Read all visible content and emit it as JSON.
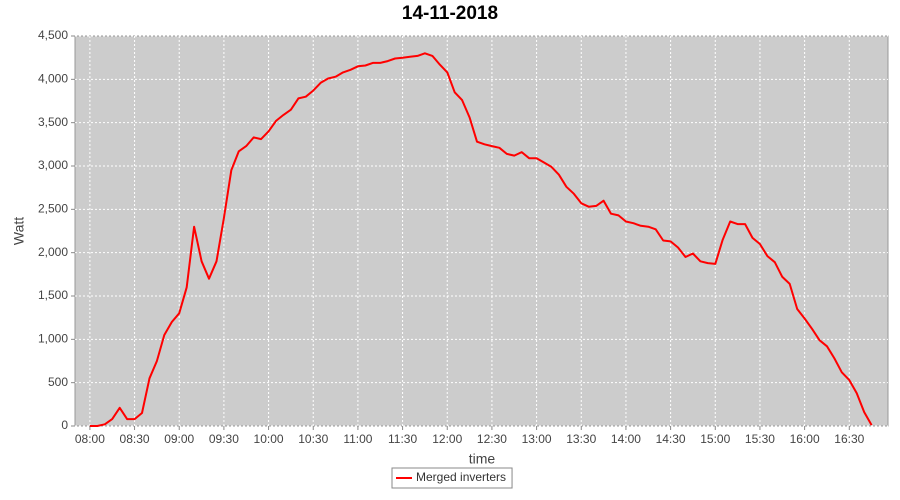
{
  "chart_data": {
    "type": "line",
    "title": "14-11-2018",
    "x_label": "time",
    "y_label": "Watt",
    "x": [
      "08:00",
      "08:05",
      "08:10",
      "08:15",
      "08:20",
      "08:25",
      "08:30",
      "08:35",
      "08:40",
      "08:45",
      "08:50",
      "08:55",
      "09:00",
      "09:05",
      "09:10",
      "09:15",
      "09:20",
      "09:25",
      "09:30",
      "09:35",
      "09:40",
      "09:45",
      "09:50",
      "09:55",
      "10:00",
      "10:05",
      "10:10",
      "10:15",
      "10:20",
      "10:25",
      "10:30",
      "10:35",
      "10:40",
      "10:45",
      "10:50",
      "10:55",
      "11:00",
      "11:05",
      "11:10",
      "11:15",
      "11:20",
      "11:25",
      "11:30",
      "11:35",
      "11:40",
      "11:45",
      "11:50",
      "11:55",
      "12:00",
      "12:05",
      "12:10",
      "12:15",
      "12:20",
      "12:25",
      "12:30",
      "12:35",
      "12:40",
      "12:45",
      "12:50",
      "12:55",
      "13:00",
      "13:05",
      "13:10",
      "13:15",
      "13:20",
      "13:25",
      "13:30",
      "13:35",
      "13:40",
      "13:45",
      "13:50",
      "13:55",
      "14:00",
      "14:05",
      "14:10",
      "14:15",
      "14:20",
      "14:25",
      "14:30",
      "14:35",
      "14:40",
      "14:45",
      "14:50",
      "14:55",
      "15:00",
      "15:05",
      "15:10",
      "15:15",
      "15:20",
      "15:25",
      "15:30",
      "15:35",
      "15:40",
      "15:45",
      "15:50",
      "15:55",
      "16:00",
      "16:05",
      "16:10",
      "16:15",
      "16:20",
      "16:25",
      "16:30",
      "16:35",
      "16:40",
      "16:45"
    ],
    "series": [
      {
        "name": "Merged inverters",
        "color": "#ff0000",
        "values": [
          0,
          0,
          20,
          80,
          210,
          80,
          80,
          150,
          550,
          750,
          1050,
          1200,
          1300,
          1600,
          2300,
          1900,
          1700,
          1900,
          2400,
          2950,
          3170,
          3230,
          3330,
          3310,
          3400,
          3520,
          3590,
          3650,
          3780,
          3800,
          3870,
          3960,
          4010,
          4030,
          4080,
          4110,
          4150,
          4160,
          4190,
          4190,
          4210,
          4240,
          4250,
          4260,
          4270,
          4300,
          4270,
          4170,
          4080,
          3850,
          3760,
          3560,
          3280,
          3250,
          3230,
          3210,
          3140,
          3120,
          3160,
          3090,
          3090,
          3040,
          2990,
          2900,
          2760,
          2680,
          2570,
          2530,
          2540,
          2600,
          2450,
          2430,
          2360,
          2340,
          2310,
          2300,
          2270,
          2140,
          2130,
          2060,
          1950,
          1990,
          1900,
          1880,
          1870,
          2150,
          2360,
          2330,
          2330,
          2170,
          2100,
          1960,
          1890,
          1720,
          1640,
          1350,
          1240,
          1120,
          990,
          920,
          780,
          620,
          530,
          380,
          160,
          10
        ]
      }
    ],
    "xlim": [
      "07:50",
      "16:56"
    ],
    "xticks": [
      "08:00",
      "08:30",
      "09:00",
      "09:30",
      "10:00",
      "10:30",
      "11:00",
      "11:30",
      "12:00",
      "12:30",
      "13:00",
      "13:30",
      "14:00",
      "14:30",
      "15:00",
      "15:30",
      "16:00",
      "16:30"
    ],
    "ylim": [
      0,
      4500
    ],
    "yticks": [
      0,
      500,
      {
        "value": 1000,
        "label": "1,000"
      },
      {
        "value": 1500,
        "label": "1,500"
      },
      {
        "value": 2000,
        "label": "2,000"
      },
      {
        "value": 2500,
        "label": "2,500"
      },
      {
        "value": 3000,
        "label": "3,000"
      },
      {
        "value": 3500,
        "label": "3,500"
      },
      {
        "value": 4000,
        "label": "4,000"
      },
      {
        "value": 4500,
        "label": "4,500"
      }
    ],
    "grid": true,
    "legend": "bottom"
  }
}
